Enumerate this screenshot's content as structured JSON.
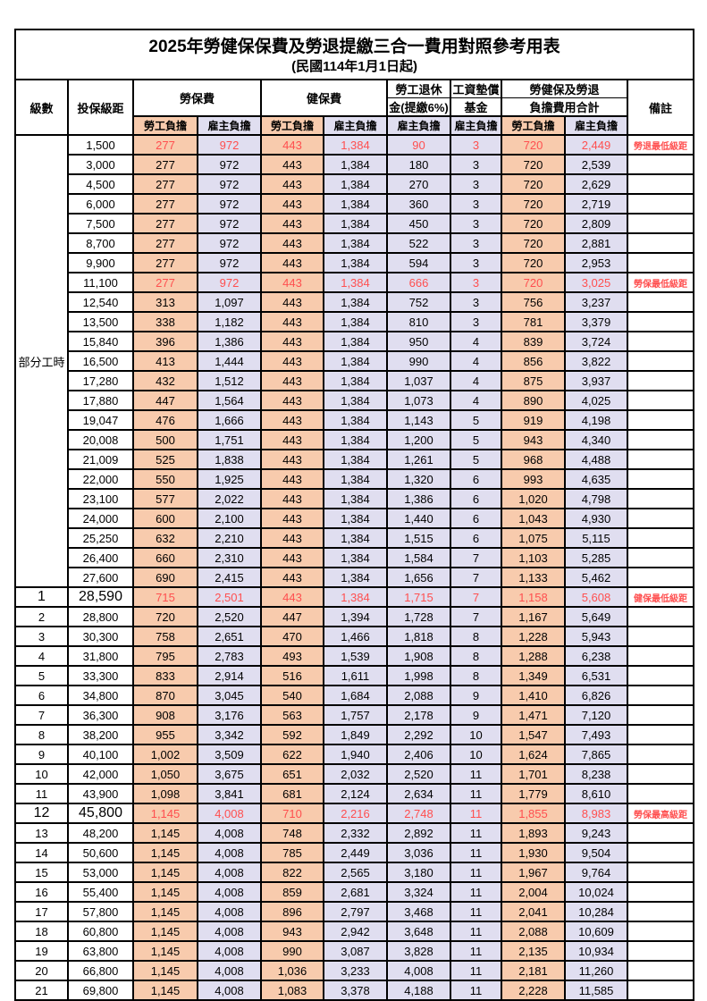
{
  "title": "2025年勞健保保費及勞退提繳三合一費用對照參考用表",
  "subtitle": "(民國114年1月1日起)",
  "columns": {
    "level": "級數",
    "bracket": "投保級距",
    "labor_insurance": "勞保費",
    "health_insurance": "健保費",
    "pension_line1": "勞工退休",
    "pension_line2": "金(提繳6%)",
    "wage_fund_line1": "工資墊償",
    "wage_fund_line2": "基金",
    "total_line1": "勞健保及勞退",
    "total_line2": "負擔費用合計",
    "remark": "備註",
    "employee_share": "勞工負擔",
    "employer_share": "雇主負擔"
  },
  "part_time_label": "部分工時",
  "part_time_rowspan": 23,
  "colors": {
    "employee_bg": "#F8CBAD",
    "employer_bg": "#E0DEF0",
    "highlight_text": "#FF4F4F",
    "border": "#000000"
  },
  "rows": [
    {
      "level": "",
      "bracket": "1,500",
      "labor_emp": "277",
      "labor_er": "972",
      "health_emp": "443",
      "health_er": "1,384",
      "pension_er": "90",
      "fund_er": "3",
      "total_emp": "720",
      "total_er": "2,449",
      "remark": "勞退最低級距",
      "highlight": true,
      "big": false
    },
    {
      "level": "",
      "bracket": "3,000",
      "labor_emp": "277",
      "labor_er": "972",
      "health_emp": "443",
      "health_er": "1,384",
      "pension_er": "180",
      "fund_er": "3",
      "total_emp": "720",
      "total_er": "2,539",
      "remark": "",
      "highlight": false,
      "big": false
    },
    {
      "level": "",
      "bracket": "4,500",
      "labor_emp": "277",
      "labor_er": "972",
      "health_emp": "443",
      "health_er": "1,384",
      "pension_er": "270",
      "fund_er": "3",
      "total_emp": "720",
      "total_er": "2,629",
      "remark": "",
      "highlight": false,
      "big": false
    },
    {
      "level": "",
      "bracket": "6,000",
      "labor_emp": "277",
      "labor_er": "972",
      "health_emp": "443",
      "health_er": "1,384",
      "pension_er": "360",
      "fund_er": "3",
      "total_emp": "720",
      "total_er": "2,719",
      "remark": "",
      "highlight": false,
      "big": false
    },
    {
      "level": "",
      "bracket": "7,500",
      "labor_emp": "277",
      "labor_er": "972",
      "health_emp": "443",
      "health_er": "1,384",
      "pension_er": "450",
      "fund_er": "3",
      "total_emp": "720",
      "total_er": "2,809",
      "remark": "",
      "highlight": false,
      "big": false
    },
    {
      "level": "",
      "bracket": "8,700",
      "labor_emp": "277",
      "labor_er": "972",
      "health_emp": "443",
      "health_er": "1,384",
      "pension_er": "522",
      "fund_er": "3",
      "total_emp": "720",
      "total_er": "2,881",
      "remark": "",
      "highlight": false,
      "big": false
    },
    {
      "level": "",
      "bracket": "9,900",
      "labor_emp": "277",
      "labor_er": "972",
      "health_emp": "443",
      "health_er": "1,384",
      "pension_er": "594",
      "fund_er": "3",
      "total_emp": "720",
      "total_er": "2,953",
      "remark": "",
      "highlight": false,
      "big": false
    },
    {
      "level": "",
      "bracket": "11,100",
      "labor_emp": "277",
      "labor_er": "972",
      "health_emp": "443",
      "health_er": "1,384",
      "pension_er": "666",
      "fund_er": "3",
      "total_emp": "720",
      "total_er": "3,025",
      "remark": "勞保最低級距",
      "highlight": true,
      "big": false
    },
    {
      "level": "",
      "bracket": "12,540",
      "labor_emp": "313",
      "labor_er": "1,097",
      "health_emp": "443",
      "health_er": "1,384",
      "pension_er": "752",
      "fund_er": "3",
      "total_emp": "756",
      "total_er": "3,237",
      "remark": "",
      "highlight": false,
      "big": false
    },
    {
      "level": "",
      "bracket": "13,500",
      "labor_emp": "338",
      "labor_er": "1,182",
      "health_emp": "443",
      "health_er": "1,384",
      "pension_er": "810",
      "fund_er": "3",
      "total_emp": "781",
      "total_er": "3,379",
      "remark": "",
      "highlight": false,
      "big": false
    },
    {
      "level": "",
      "bracket": "15,840",
      "labor_emp": "396",
      "labor_er": "1,386",
      "health_emp": "443",
      "health_er": "1,384",
      "pension_er": "950",
      "fund_er": "4",
      "total_emp": "839",
      "total_er": "3,724",
      "remark": "",
      "highlight": false,
      "big": false
    },
    {
      "level": "",
      "bracket": "16,500",
      "labor_emp": "413",
      "labor_er": "1,444",
      "health_emp": "443",
      "health_er": "1,384",
      "pension_er": "990",
      "fund_er": "4",
      "total_emp": "856",
      "total_er": "3,822",
      "remark": "",
      "highlight": false,
      "big": false
    },
    {
      "level": "",
      "bracket": "17,280",
      "labor_emp": "432",
      "labor_er": "1,512",
      "health_emp": "443",
      "health_er": "1,384",
      "pension_er": "1,037",
      "fund_er": "4",
      "total_emp": "875",
      "total_er": "3,937",
      "remark": "",
      "highlight": false,
      "big": false
    },
    {
      "level": "",
      "bracket": "17,880",
      "labor_emp": "447",
      "labor_er": "1,564",
      "health_emp": "443",
      "health_er": "1,384",
      "pension_er": "1,073",
      "fund_er": "4",
      "total_emp": "890",
      "total_er": "4,025",
      "remark": "",
      "highlight": false,
      "big": false
    },
    {
      "level": "",
      "bracket": "19,047",
      "labor_emp": "476",
      "labor_er": "1,666",
      "health_emp": "443",
      "health_er": "1,384",
      "pension_er": "1,143",
      "fund_er": "5",
      "total_emp": "919",
      "total_er": "4,198",
      "remark": "",
      "highlight": false,
      "big": false
    },
    {
      "level": "",
      "bracket": "20,008",
      "labor_emp": "500",
      "labor_er": "1,751",
      "health_emp": "443",
      "health_er": "1,384",
      "pension_er": "1,200",
      "fund_er": "5",
      "total_emp": "943",
      "total_er": "4,340",
      "remark": "",
      "highlight": false,
      "big": false
    },
    {
      "level": "",
      "bracket": "21,009",
      "labor_emp": "525",
      "labor_er": "1,838",
      "health_emp": "443",
      "health_er": "1,384",
      "pension_er": "1,261",
      "fund_er": "5",
      "total_emp": "968",
      "total_er": "4,488",
      "remark": "",
      "highlight": false,
      "big": false
    },
    {
      "level": "",
      "bracket": "22,000",
      "labor_emp": "550",
      "labor_er": "1,925",
      "health_emp": "443",
      "health_er": "1,384",
      "pension_er": "1,320",
      "fund_er": "6",
      "total_emp": "993",
      "total_er": "4,635",
      "remark": "",
      "highlight": false,
      "big": false
    },
    {
      "level": "",
      "bracket": "23,100",
      "labor_emp": "577",
      "labor_er": "2,022",
      "health_emp": "443",
      "health_er": "1,384",
      "pension_er": "1,386",
      "fund_er": "6",
      "total_emp": "1,020",
      "total_er": "4,798",
      "remark": "",
      "highlight": false,
      "big": false
    },
    {
      "level": "",
      "bracket": "24,000",
      "labor_emp": "600",
      "labor_er": "2,100",
      "health_emp": "443",
      "health_er": "1,384",
      "pension_er": "1,440",
      "fund_er": "6",
      "total_emp": "1,043",
      "total_er": "4,930",
      "remark": "",
      "highlight": false,
      "big": false
    },
    {
      "level": "",
      "bracket": "25,250",
      "labor_emp": "632",
      "labor_er": "2,210",
      "health_emp": "443",
      "health_er": "1,384",
      "pension_er": "1,515",
      "fund_er": "6",
      "total_emp": "1,075",
      "total_er": "5,115",
      "remark": "",
      "highlight": false,
      "big": false
    },
    {
      "level": "",
      "bracket": "26,400",
      "labor_emp": "660",
      "labor_er": "2,310",
      "health_emp": "443",
      "health_er": "1,384",
      "pension_er": "1,584",
      "fund_er": "7",
      "total_emp": "1,103",
      "total_er": "5,285",
      "remark": "",
      "highlight": false,
      "big": false
    },
    {
      "level": "",
      "bracket": "27,600",
      "labor_emp": "690",
      "labor_er": "2,415",
      "health_emp": "443",
      "health_er": "1,384",
      "pension_er": "1,656",
      "fund_er": "7",
      "total_emp": "1,133",
      "total_er": "5,462",
      "remark": "",
      "highlight": false,
      "big": false
    },
    {
      "level": "1",
      "bracket": "28,590",
      "labor_emp": "715",
      "labor_er": "2,501",
      "health_emp": "443",
      "health_er": "1,384",
      "pension_er": "1,715",
      "fund_er": "7",
      "total_emp": "1,158",
      "total_er": "5,608",
      "remark": "健保最低級距",
      "highlight": true,
      "big": true
    },
    {
      "level": "2",
      "bracket": "28,800",
      "labor_emp": "720",
      "labor_er": "2,520",
      "health_emp": "447",
      "health_er": "1,394",
      "pension_er": "1,728",
      "fund_er": "7",
      "total_emp": "1,167",
      "total_er": "5,649",
      "remark": "",
      "highlight": false,
      "big": false
    },
    {
      "level": "3",
      "bracket": "30,300",
      "labor_emp": "758",
      "labor_er": "2,651",
      "health_emp": "470",
      "health_er": "1,466",
      "pension_er": "1,818",
      "fund_er": "8",
      "total_emp": "1,228",
      "total_er": "5,943",
      "remark": "",
      "highlight": false,
      "big": false
    },
    {
      "level": "4",
      "bracket": "31,800",
      "labor_emp": "795",
      "labor_er": "2,783",
      "health_emp": "493",
      "health_er": "1,539",
      "pension_er": "1,908",
      "fund_er": "8",
      "total_emp": "1,288",
      "total_er": "6,238",
      "remark": "",
      "highlight": false,
      "big": false
    },
    {
      "level": "5",
      "bracket": "33,300",
      "labor_emp": "833",
      "labor_er": "2,914",
      "health_emp": "516",
      "health_er": "1,611",
      "pension_er": "1,998",
      "fund_er": "8",
      "total_emp": "1,349",
      "total_er": "6,531",
      "remark": "",
      "highlight": false,
      "big": false
    },
    {
      "level": "6",
      "bracket": "34,800",
      "labor_emp": "870",
      "labor_er": "3,045",
      "health_emp": "540",
      "health_er": "1,684",
      "pension_er": "2,088",
      "fund_er": "9",
      "total_emp": "1,410",
      "total_er": "6,826",
      "remark": "",
      "highlight": false,
      "big": false
    },
    {
      "level": "7",
      "bracket": "36,300",
      "labor_emp": "908",
      "labor_er": "3,176",
      "health_emp": "563",
      "health_er": "1,757",
      "pension_er": "2,178",
      "fund_er": "9",
      "total_emp": "1,471",
      "total_er": "7,120",
      "remark": "",
      "highlight": false,
      "big": false
    },
    {
      "level": "8",
      "bracket": "38,200",
      "labor_emp": "955",
      "labor_er": "3,342",
      "health_emp": "592",
      "health_er": "1,849",
      "pension_er": "2,292",
      "fund_er": "10",
      "total_emp": "1,547",
      "total_er": "7,493",
      "remark": "",
      "highlight": false,
      "big": false
    },
    {
      "level": "9",
      "bracket": "40,100",
      "labor_emp": "1,002",
      "labor_er": "3,509",
      "health_emp": "622",
      "health_er": "1,940",
      "pension_er": "2,406",
      "fund_er": "10",
      "total_emp": "1,624",
      "total_er": "7,865",
      "remark": "",
      "highlight": false,
      "big": false
    },
    {
      "level": "10",
      "bracket": "42,000",
      "labor_emp": "1,050",
      "labor_er": "3,675",
      "health_emp": "651",
      "health_er": "2,032",
      "pension_er": "2,520",
      "fund_er": "11",
      "total_emp": "1,701",
      "total_er": "8,238",
      "remark": "",
      "highlight": false,
      "big": false
    },
    {
      "level": "11",
      "bracket": "43,900",
      "labor_emp": "1,098",
      "labor_er": "3,841",
      "health_emp": "681",
      "health_er": "2,124",
      "pension_er": "2,634",
      "fund_er": "11",
      "total_emp": "1,779",
      "total_er": "8,610",
      "remark": "",
      "highlight": false,
      "big": false
    },
    {
      "level": "12",
      "bracket": "45,800",
      "labor_emp": "1,145",
      "labor_er": "4,008",
      "health_emp": "710",
      "health_er": "2,216",
      "pension_er": "2,748",
      "fund_er": "11",
      "total_emp": "1,855",
      "total_er": "8,983",
      "remark": "勞保最高級距",
      "highlight": true,
      "big": true
    },
    {
      "level": "13",
      "bracket": "48,200",
      "labor_emp": "1,145",
      "labor_er": "4,008",
      "health_emp": "748",
      "health_er": "2,332",
      "pension_er": "2,892",
      "fund_er": "11",
      "total_emp": "1,893",
      "total_er": "9,243",
      "remark": "",
      "highlight": false,
      "big": false
    },
    {
      "level": "14",
      "bracket": "50,600",
      "labor_emp": "1,145",
      "labor_er": "4,008",
      "health_emp": "785",
      "health_er": "2,449",
      "pension_er": "3,036",
      "fund_er": "11",
      "total_emp": "1,930",
      "total_er": "9,504",
      "remark": "",
      "highlight": false,
      "big": false
    },
    {
      "level": "15",
      "bracket": "53,000",
      "labor_emp": "1,145",
      "labor_er": "4,008",
      "health_emp": "822",
      "health_er": "2,565",
      "pension_er": "3,180",
      "fund_er": "11",
      "total_emp": "1,967",
      "total_er": "9,764",
      "remark": "",
      "highlight": false,
      "big": false
    },
    {
      "level": "16",
      "bracket": "55,400",
      "labor_emp": "1,145",
      "labor_er": "4,008",
      "health_emp": "859",
      "health_er": "2,681",
      "pension_er": "3,324",
      "fund_er": "11",
      "total_emp": "2,004",
      "total_er": "10,024",
      "remark": "",
      "highlight": false,
      "big": false
    },
    {
      "level": "17",
      "bracket": "57,800",
      "labor_emp": "1,145",
      "labor_er": "4,008",
      "health_emp": "896",
      "health_er": "2,797",
      "pension_er": "3,468",
      "fund_er": "11",
      "total_emp": "2,041",
      "total_er": "10,284",
      "remark": "",
      "highlight": false,
      "big": false
    },
    {
      "level": "18",
      "bracket": "60,800",
      "labor_emp": "1,145",
      "labor_er": "4,008",
      "health_emp": "943",
      "health_er": "2,942",
      "pension_er": "3,648",
      "fund_er": "11",
      "total_emp": "2,088",
      "total_er": "10,609",
      "remark": "",
      "highlight": false,
      "big": false
    },
    {
      "level": "19",
      "bracket": "63,800",
      "labor_emp": "1,145",
      "labor_er": "4,008",
      "health_emp": "990",
      "health_er": "3,087",
      "pension_er": "3,828",
      "fund_er": "11",
      "total_emp": "2,135",
      "total_er": "10,934",
      "remark": "",
      "highlight": false,
      "big": false
    },
    {
      "level": "20",
      "bracket": "66,800",
      "labor_emp": "1,145",
      "labor_er": "4,008",
      "health_emp": "1,036",
      "health_er": "3,233",
      "pension_er": "4,008",
      "fund_er": "11",
      "total_emp": "2,181",
      "total_er": "11,260",
      "remark": "",
      "highlight": false,
      "big": false
    },
    {
      "level": "21",
      "bracket": "69,800",
      "labor_emp": "1,145",
      "labor_er": "4,008",
      "health_emp": "1,083",
      "health_er": "3,378",
      "pension_er": "4,188",
      "fund_er": "11",
      "total_emp": "2,228",
      "total_er": "11,585",
      "remark": "",
      "highlight": false,
      "big": false
    }
  ]
}
